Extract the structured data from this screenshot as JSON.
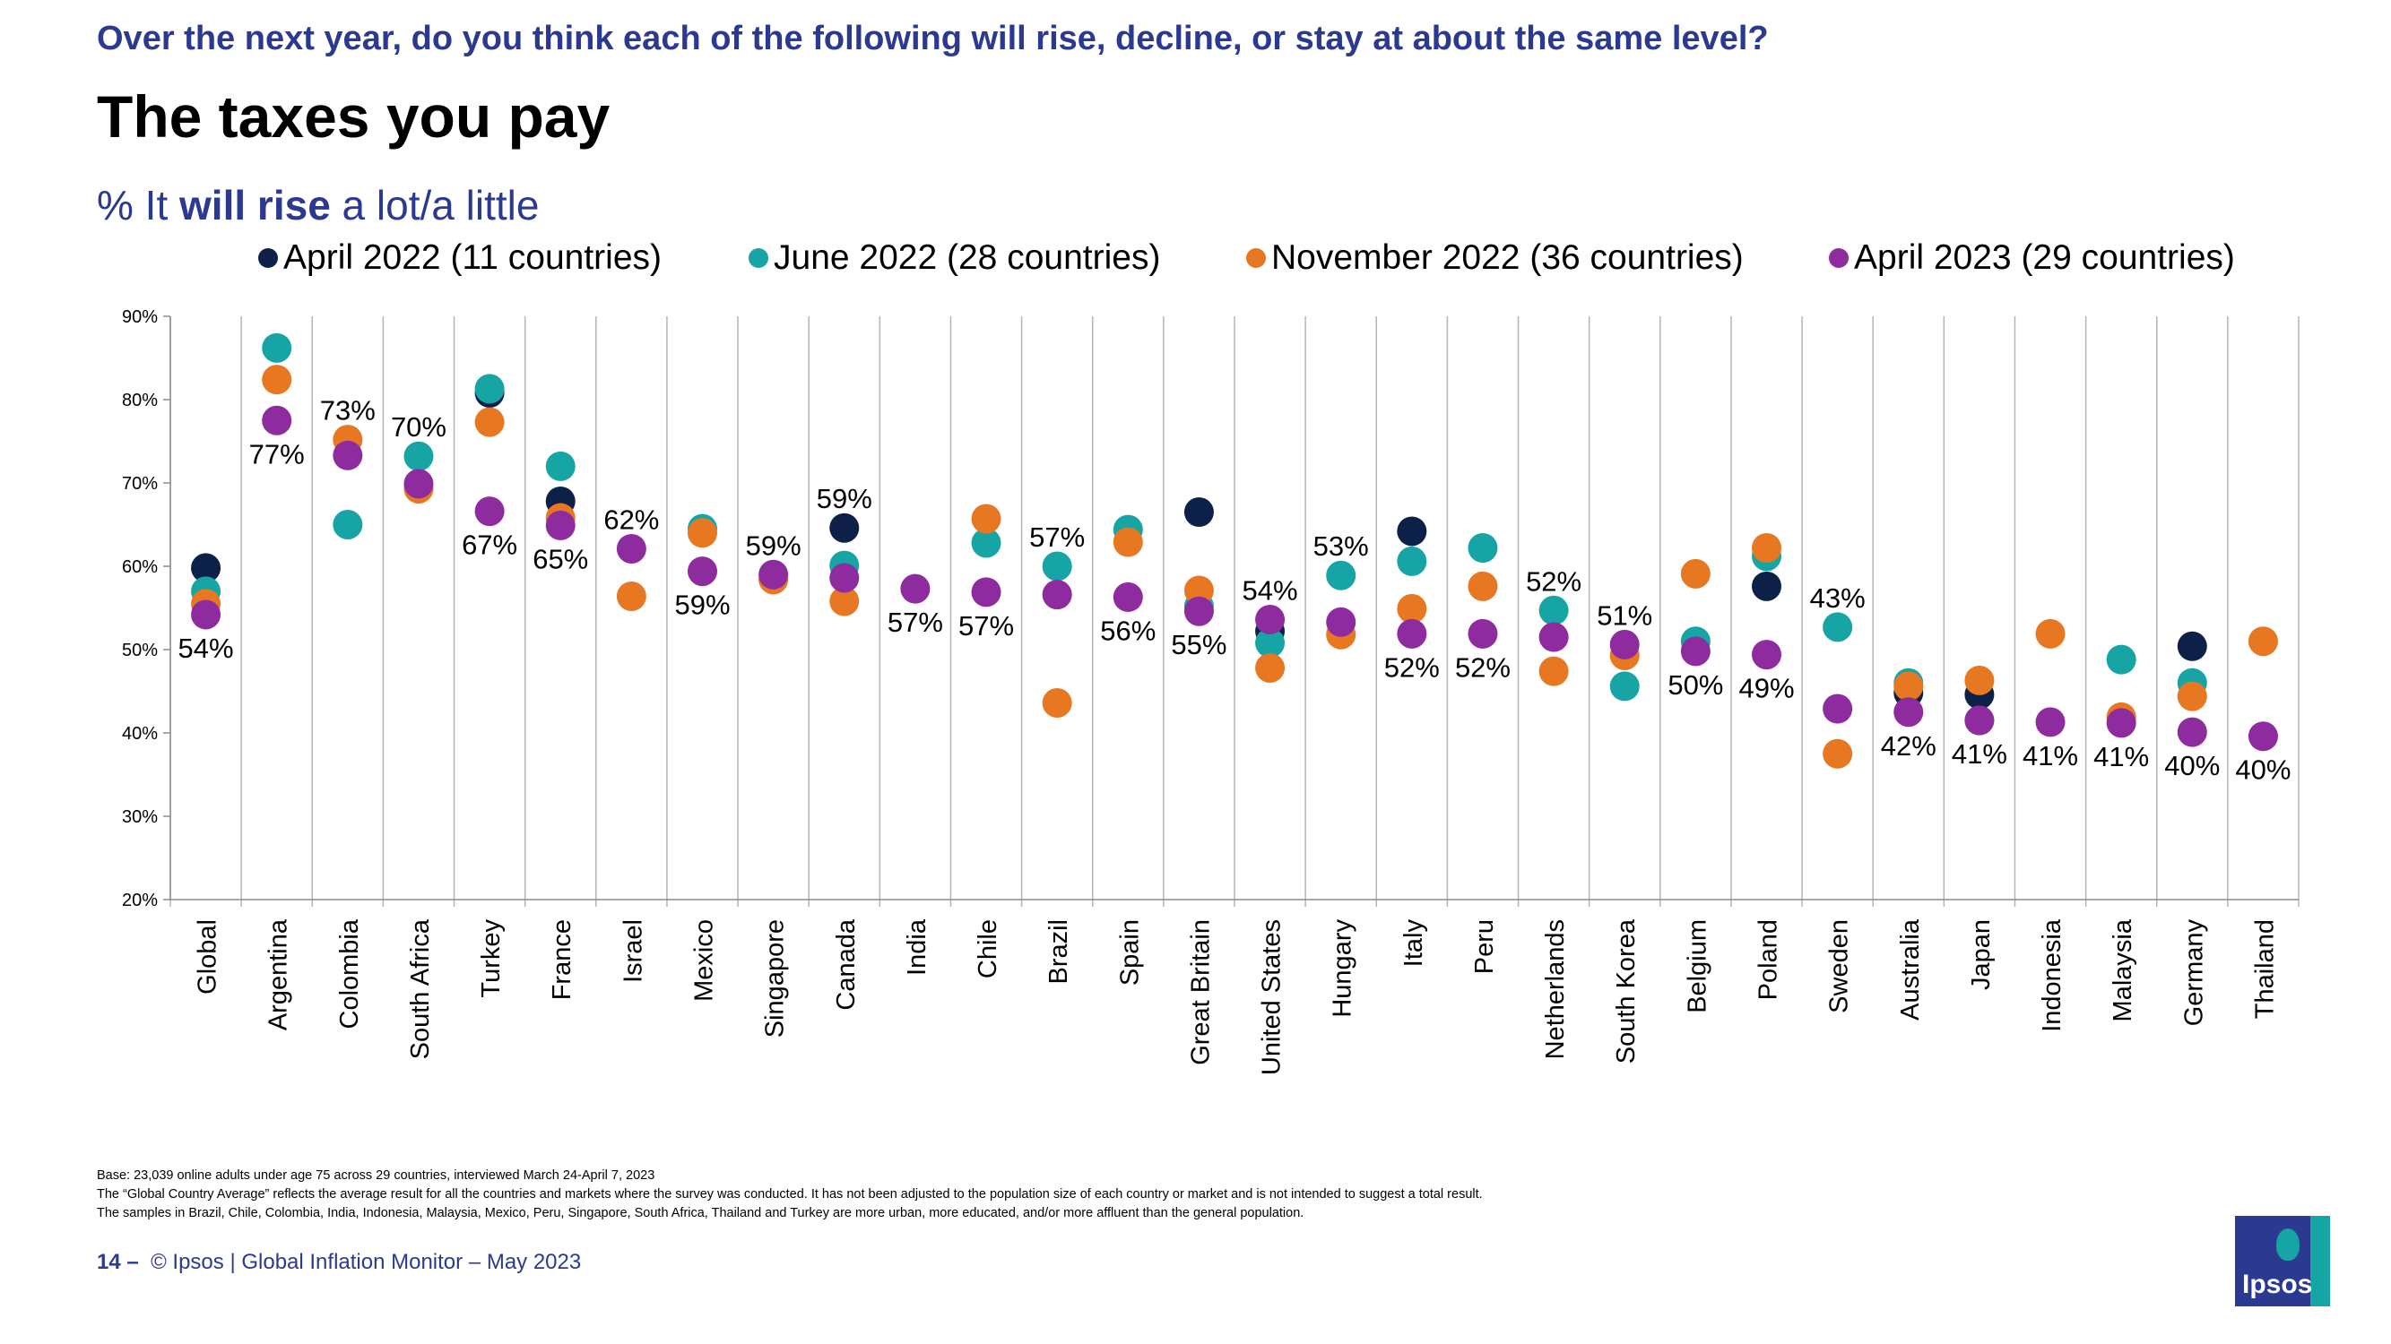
{
  "header": {
    "question": "Over the next year, do you think each of the following will rise, decline, or stay at about the same level?",
    "title": "The taxes you pay",
    "subtitle_prefix": "% It ",
    "subtitle_bold": "will rise",
    "subtitle_suffix": " a lot/a little"
  },
  "chart_data": {
    "type": "scatter",
    "title": "The taxes you pay",
    "subtitle": "% It will rise a lot/a little",
    "ylim": [
      20,
      90
    ],
    "yticks": [
      "20%",
      "30%",
      "40%",
      "50%",
      "60%",
      "70%",
      "80%",
      "90%"
    ],
    "legend_position": "top",
    "categories": [
      "Global",
      "Argentina",
      "Colombia",
      "South Africa",
      "Turkey",
      "France",
      "Israel",
      "Mexico",
      "Singapore",
      "Canada",
      "India",
      "Chile",
      "Brazil",
      "Spain",
      "Great Britain",
      "United States",
      "Hungary",
      "Italy",
      "Peru",
      "Netherlands",
      "South Korea",
      "Belgium",
      "Poland",
      "Sweden",
      "Australia",
      "Japan",
      "Indonesia",
      "Malaysia",
      "Germany",
      "Thailand"
    ],
    "series": [
      {
        "name": "April 2022 (11 countries)",
        "color": "#0d2148",
        "values": [
          59.8,
          null,
          null,
          null,
          80.8,
          67.8,
          null,
          null,
          null,
          64.6,
          null,
          null,
          null,
          null,
          66.5,
          52.2,
          null,
          64.2,
          null,
          null,
          null,
          null,
          57.6,
          null,
          44.8,
          44.6,
          null,
          null,
          50.4,
          null
        ]
      },
      {
        "name": "June 2022 (28 countries)",
        "color": "#17a4a5",
        "values": [
          57,
          86.2,
          65,
          73.2,
          81.3,
          72,
          null,
          64.5,
          null,
          60.1,
          null,
          62.8,
          60,
          64.4,
          55.2,
          50.8,
          58.9,
          60.6,
          62.2,
          54.7,
          45.6,
          51,
          61.2,
          52.7,
          46,
          41.5,
          null,
          48.8,
          46,
          null
        ]
      },
      {
        "name": "November 2022 (36 countries)",
        "color": "#e87722",
        "values": [
          55.5,
          82.4,
          75.2,
          69.3,
          77.3,
          65.8,
          56.4,
          64,
          58.4,
          55.8,
          null,
          65.7,
          43.6,
          62.9,
          57.1,
          47.8,
          51.8,
          54.9,
          57.6,
          47.4,
          49.3,
          59.1,
          62.2,
          37.5,
          45.6,
          46.3,
          51.9,
          41.9,
          44.4,
          51
        ]
      },
      {
        "name": "April 2023 (29 countries)",
        "color": "#8e2b9e",
        "values": [
          54.2,
          77.5,
          73.3,
          69.9,
          66.6,
          64.9,
          62.1,
          59.4,
          59,
          58.6,
          57.3,
          56.9,
          56.6,
          56.3,
          54.6,
          53.6,
          53.3,
          51.9,
          51.9,
          51.5,
          50.6,
          49.8,
          49.4,
          42.9,
          42.5,
          41.5,
          41.3,
          41.2,
          40.1,
          39.6
        ]
      }
    ],
    "data_labels": [
      "54%",
      "77%",
      "73%",
      "70%",
      "67%",
      "65%",
      "62%",
      "59%",
      "59%",
      "59%",
      "57%",
      "57%",
      "57%",
      "56%",
      "55%",
      "54%",
      "53%",
      "52%",
      "52%",
      "52%",
      "51%",
      "50%",
      "49%",
      "43%",
      "42%",
      "41%",
      "41%",
      "41%",
      "40%",
      "40%"
    ]
  },
  "footnotes": [
    "Base: 23,039 online adults under age 75 across 29 countries, interviewed March 24-April 7, 2023",
    "The “Global Country Average” reflects the average result for all the countries and markets where the survey was conducted. It has not been adjusted to the population size of each country or market and is not intended to suggest a total result.",
    "The samples in Brazil, Chile, Colombia, India, Indonesia, Malaysia, Mexico, Peru, Singapore, South Africa, Thailand and Turkey are more urban, more educated, and/or more affluent than the general population."
  ],
  "footer": {
    "page_number": "14 –",
    "text": "© Ipsos | Global Inflation Monitor – May 2023"
  },
  "logo": {
    "text": "Ipsos"
  }
}
